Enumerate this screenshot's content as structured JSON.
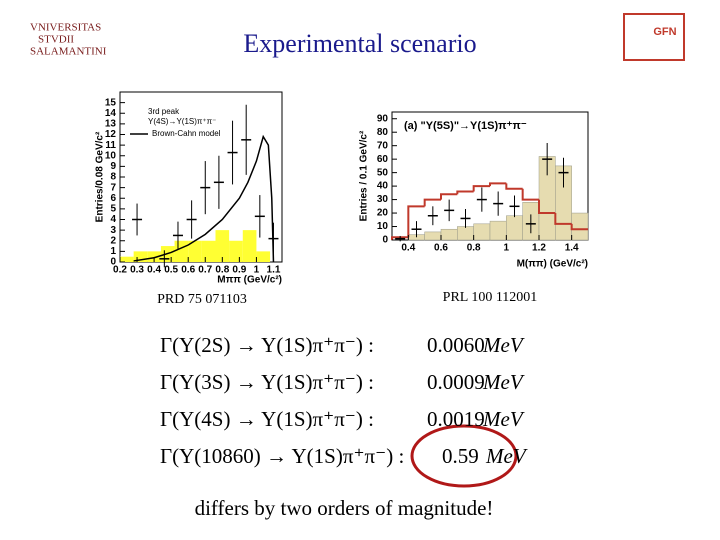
{
  "header": {
    "title": "Experimental scenario",
    "logo_left": [
      "VNIVERSITAS",
      "STVDII",
      "SALAMANTINI"
    ],
    "logo_right": "GFN"
  },
  "chart_data": [
    {
      "type": "histogram",
      "legend_title": "3rd peak",
      "subtitle": "Υ(4S)→Υ(1S)π⁺π⁻",
      "x_label": "Mππ (GeV/c²)",
      "y_label": "Entries/0.08 GeV/c²",
      "xlim": [
        0.2,
        1.15
      ],
      "ylim": [
        0,
        16
      ],
      "xticks": [
        0.2,
        0.3,
        0.4,
        0.5,
        0.6,
        0.7,
        0.8,
        0.9,
        1,
        1.1
      ],
      "yticks": [
        0,
        1,
        2,
        3,
        4,
        5,
        6,
        7,
        8,
        9,
        10,
        11,
        12,
        13,
        14,
        15
      ],
      "bins": [
        0.2,
        0.28,
        0.36,
        0.44,
        0.52,
        0.6,
        0.68,
        0.76,
        0.84,
        0.92,
        1.0,
        1.08
      ],
      "hist": {
        "color": "#ffff33",
        "values": [
          0.5,
          1,
          1,
          1.5,
          2,
          2,
          2,
          3,
          2,
          3,
          1
        ]
      },
      "points": {
        "x": [
          0.3,
          0.46,
          0.54,
          0.62,
          0.7,
          0.78,
          0.86,
          0.94,
          1.02,
          1.1
        ],
        "values": [
          4,
          0.3,
          2.5,
          4,
          7,
          7.5,
          10.3,
          11.5,
          4.3,
          2.2
        ],
        "errors": [
          1.5,
          0.8,
          1.3,
          1.8,
          2.5,
          2.5,
          3,
          3.3,
          2,
          1.5
        ]
      },
      "curve": {
        "name": "Brown-Cahn model",
        "color": "#000000",
        "x": [
          0.28,
          0.4,
          0.5,
          0.6,
          0.7,
          0.8,
          0.9,
          0.95,
          1.0,
          1.04,
          1.07,
          1.09,
          1.1
        ],
        "values": [
          0.1,
          0.4,
          0.9,
          1.6,
          2.6,
          4,
          6,
          7.5,
          9.5,
          11.8,
          11,
          6,
          0
        ]
      },
      "reference": "PRD 75 071103"
    },
    {
      "type": "histogram",
      "subtitle": "(a) \"Υ(5S)\"→Υ(1S)π⁺π⁻",
      "x_label": "M(ππ) (GeV/c²)",
      "y_label": "Entries / 0.1 GeV/c²",
      "xlim": [
        0.3,
        1.5
      ],
      "ylim": [
        0,
        95
      ],
      "xticks": [
        0.4,
        0.6,
        0.8,
        1,
        1.2,
        1.4
      ],
      "yticks": [
        0,
        10,
        20,
        30,
        40,
        50,
        60,
        70,
        80,
        90
      ],
      "bins": [
        0.3,
        0.4,
        0.5,
        0.6,
        0.7,
        0.8,
        0.9,
        1.0,
        1.1,
        1.2,
        1.3,
        1.4,
        1.5
      ],
      "hist": {
        "color": "#e6dcb0",
        "values": [
          0,
          4,
          6,
          8,
          10,
          12,
          14,
          18,
          28,
          62,
          55,
          20
        ]
      },
      "step": {
        "color": "#c0392b",
        "values": [
          2,
          25,
          30,
          34,
          36,
          40,
          42,
          38,
          30,
          20,
          12,
          8
        ]
      },
      "points": {
        "x": [
          0.35,
          0.45,
          0.55,
          0.65,
          0.75,
          0.85,
          0.95,
          1.05,
          1.15,
          1.25,
          1.35
        ],
        "values": [
          1,
          8,
          18,
          22,
          16,
          30,
          27,
          25,
          12,
          60,
          50
        ],
        "errors": [
          2,
          6,
          7,
          8,
          7,
          9,
          9,
          8,
          7,
          12,
          11
        ]
      },
      "reference": "PRL 100 112001"
    }
  ],
  "equations": [
    {
      "left": "Γ(Υ(2S) → Υ(1S)π⁺π⁻) :",
      "value": "0.0060",
      "unit": "MeV"
    },
    {
      "left": "Γ(Υ(3S) → Υ(1S)π⁺π⁻) :",
      "value": "0.0009",
      "unit": "MeV"
    },
    {
      "left": "Γ(Υ(4S) → Υ(1S)π⁺π⁻) :",
      "value": "0.0019",
      "unit": "MeV"
    },
    {
      "left": "Γ(Υ(10860) → Υ(1S)π⁺π⁻) :",
      "value": "0.59",
      "unit": "MeV"
    }
  ],
  "footer": "differs by two orders of magnitude!"
}
